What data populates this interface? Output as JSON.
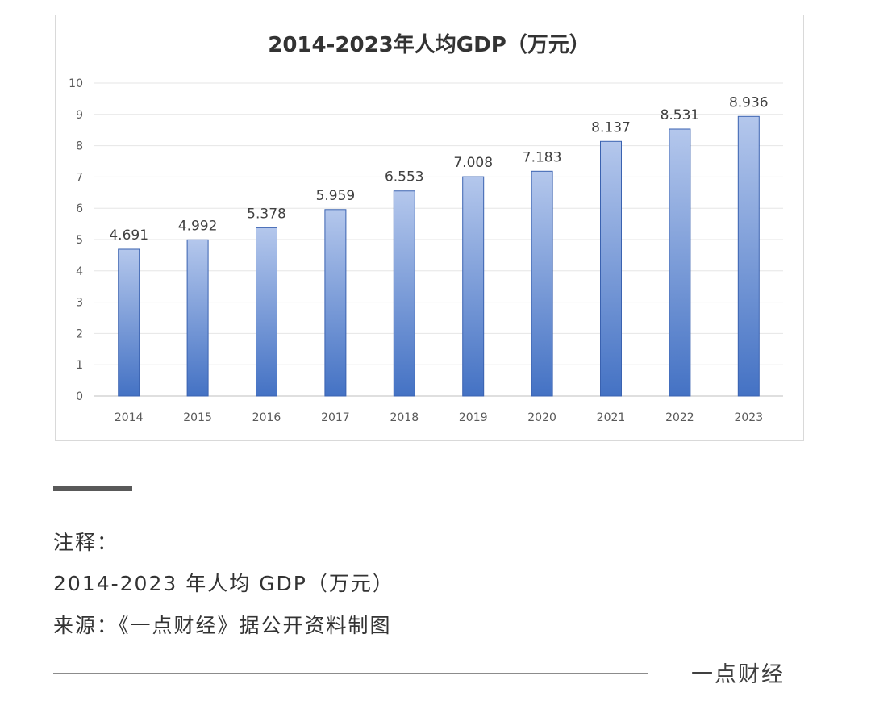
{
  "chart_data": {
    "type": "bar",
    "title": "2014-2023年人均GDP（万元）",
    "categories": [
      "2014",
      "2015",
      "2016",
      "2017",
      "2018",
      "2019",
      "2020",
      "2021",
      "2022",
      "2023"
    ],
    "values": [
      4.691,
      4.992,
      5.378,
      5.959,
      6.553,
      7.008,
      7.183,
      8.137,
      8.531,
      8.936
    ],
    "data_labels": [
      "4.691",
      "4.992",
      "5.378",
      "5.959",
      "6.553",
      "7.008",
      "7.183",
      "8.137",
      "8.531",
      "8.936"
    ],
    "y_ticks": [
      "0",
      "1",
      "2",
      "3",
      "4",
      "5",
      "6",
      "7",
      "8",
      "9",
      "10"
    ],
    "ylim": [
      0,
      10
    ],
    "xlabel": "",
    "ylabel": "",
    "grid": true,
    "bar_color_top": "#b4c7ec",
    "bar_color_bottom": "#4472c4",
    "bar_border": "#3a62b0"
  },
  "notes": {
    "heading": "注释：",
    "title_line": "2014-2023 年人均 GDP（万元）",
    "source_line": "来源：《一点财经》据公开资料制图"
  },
  "footer": {
    "brand": "一点财经"
  }
}
